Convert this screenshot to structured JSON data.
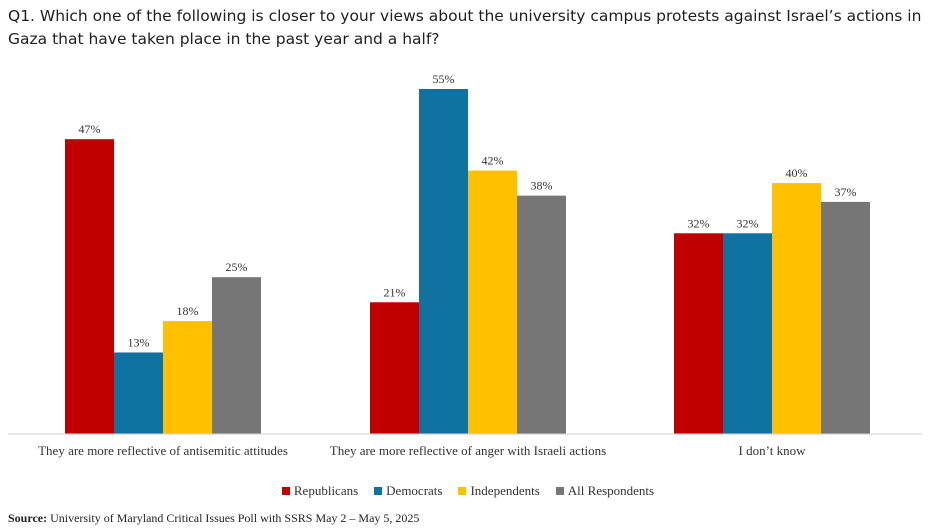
{
  "title": "Q1. Which one of the following is closer to your views about the university campus protests against Israel’s actions in Gaza that have taken place in the past year and a half?",
  "source": {
    "label": "Source:",
    "text": " University of Maryland Critical Issues Poll with SSRS May 2 – May 5, 2025"
  },
  "chart_data": {
    "type": "bar",
    "categories": [
      "They are more reflective of antisemitic attitudes",
      "They are more reflective of anger with Israeli actions",
      "I don’t know"
    ],
    "series": [
      {
        "name": "Republicans",
        "color": "#c00000",
        "values": [
          47,
          21,
          32
        ],
        "labels": [
          "47%",
          "21%",
          "32%"
        ]
      },
      {
        "name": "Democrats",
        "color": "#1072a0",
        "values": [
          13,
          55,
          32
        ],
        "labels": [
          "13%",
          "55%",
          "32%"
        ]
      },
      {
        "name": "Independents",
        "color": "#ffc000",
        "values": [
          18,
          42,
          40
        ],
        "labels": [
          "18%",
          "42%",
          "40%"
        ]
      },
      {
        "name": "All Respondents",
        "color": "#767676",
        "values": [
          25,
          38,
          37
        ],
        "labels": [
          "25%",
          "38%",
          "37%"
        ]
      }
    ],
    "ylim": [
      0,
      55
    ],
    "grid": false,
    "legend_position": "bottom"
  }
}
